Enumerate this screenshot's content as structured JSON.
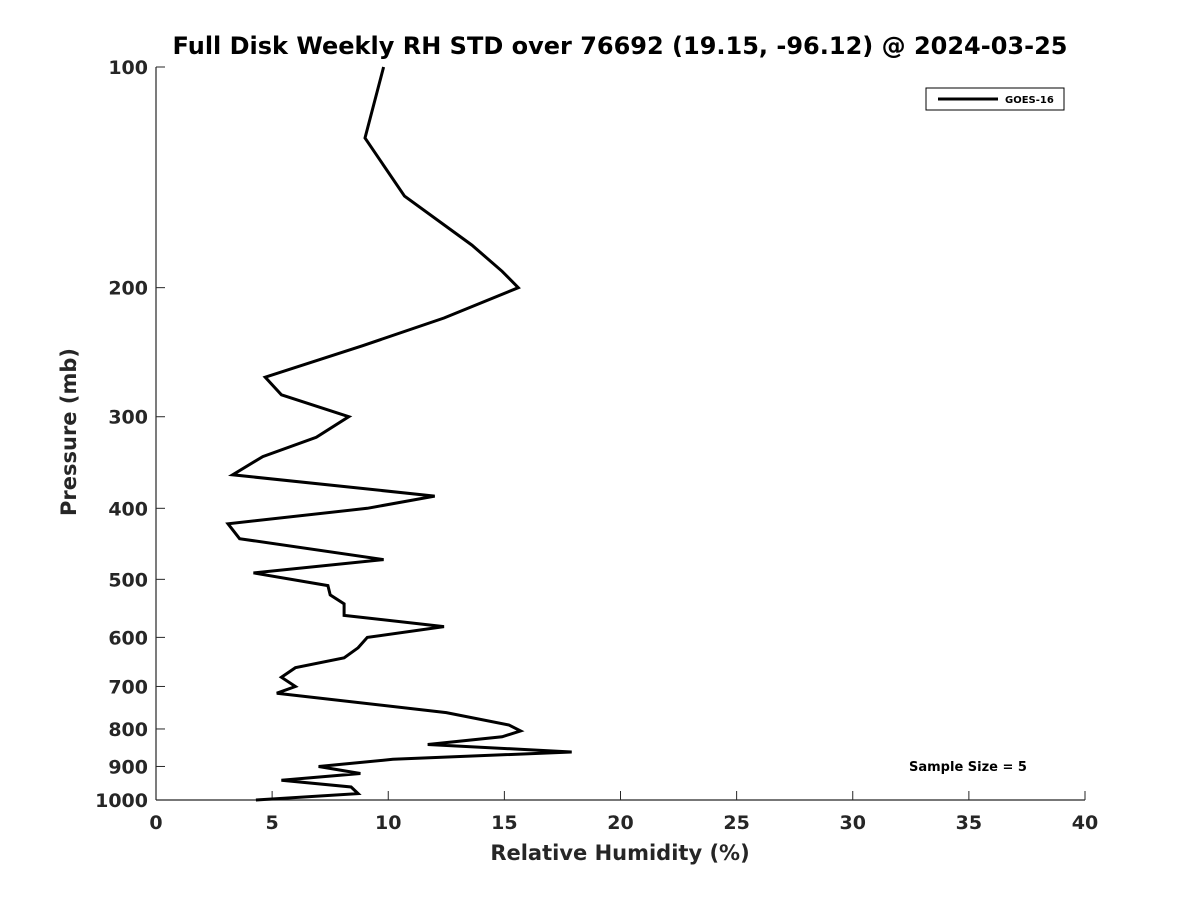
{
  "chart_data": {
    "type": "line",
    "title": "Full Disk Weekly RH STD over 76692 (19.15, -96.12) @ 2024-03-25",
    "xlabel": "Relative Humidity (%)",
    "ylabel": "Pressure (mb)",
    "xlim": [
      0,
      40
    ],
    "ylim": [
      100,
      1000
    ],
    "y_scale": "log",
    "y_reversed": true,
    "x_ticks": [
      0,
      5,
      10,
      15,
      20,
      25,
      30,
      35,
      40
    ],
    "y_ticks": [
      100,
      200,
      300,
      400,
      500,
      600,
      700,
      800,
      900,
      1000
    ],
    "grid": false,
    "legend_position": "top-right",
    "series": [
      {
        "name": "GOES-16",
        "color": "#000000",
        "x": [
          9.8,
          9.0,
          10.7,
          13.6,
          14.9,
          15.6,
          12.4,
          8.9,
          4.7,
          5.4,
          8.3,
          6.9,
          4.6,
          3.3,
          12.0,
          9.1,
          3.1,
          3.6,
          9.8,
          4.2,
          7.4,
          7.5,
          8.1,
          8.1,
          12.4,
          9.1,
          8.7,
          8.1,
          6.0,
          5.4,
          6.0,
          5.2,
          12.5,
          15.2,
          15.7,
          14.9,
          11.7,
          17.9,
          10.2,
          7.0,
          8.8,
          5.4,
          8.4,
          8.7,
          4.3
        ],
        "y": [
          100,
          125,
          150,
          175,
          190,
          200,
          220,
          240,
          265,
          280,
          300,
          320,
          340,
          360,
          385,
          400,
          420,
          440,
          470,
          490,
          510,
          525,
          540,
          560,
          580,
          600,
          620,
          640,
          660,
          680,
          700,
          715,
          760,
          790,
          805,
          820,
          840,
          860,
          880,
          900,
          920,
          940,
          960,
          980,
          1000
        ]
      }
    ],
    "annotations": [
      "Sample Size = 5"
    ]
  }
}
